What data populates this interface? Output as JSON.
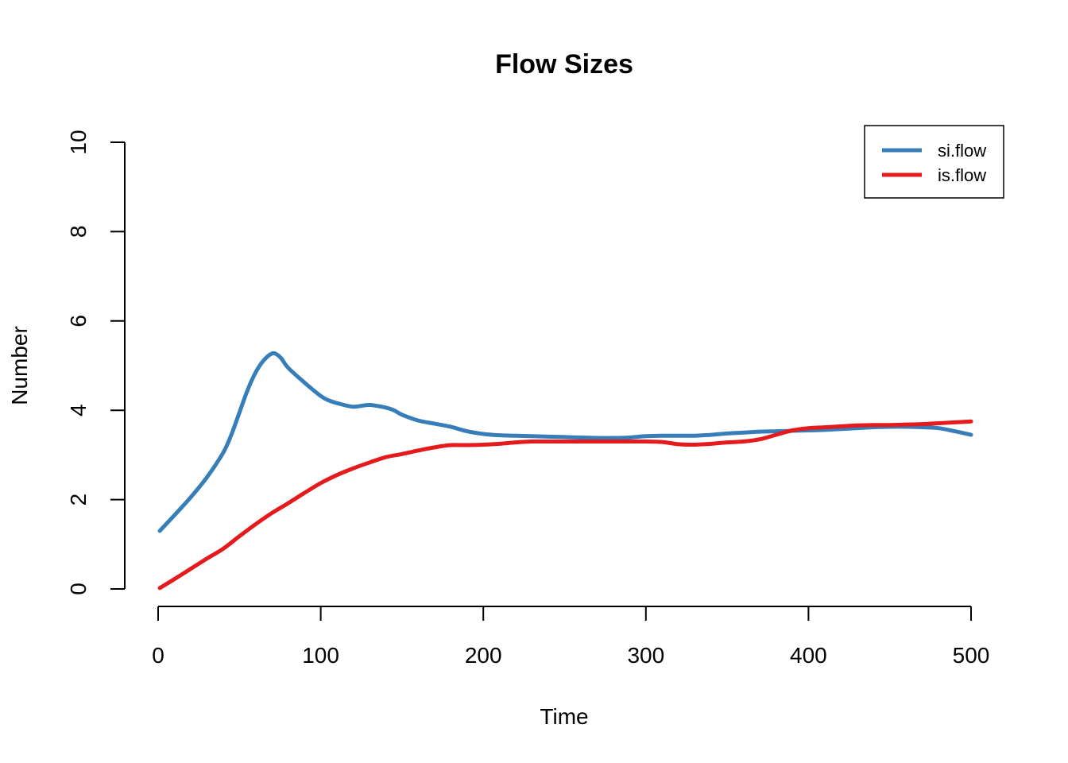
{
  "chart_data": {
    "type": "line",
    "title": "Flow Sizes",
    "xlabel": "Time",
    "ylabel": "Number",
    "xlim": [
      0,
      500
    ],
    "ylim": [
      0,
      10
    ],
    "xticks": [
      0,
      100,
      200,
      300,
      400,
      500
    ],
    "yticks": [
      0,
      2,
      4,
      6,
      8,
      10
    ],
    "grid": false,
    "legend": {
      "position": "top-right"
    },
    "series": [
      {
        "name": "si.flow",
        "color": "#377EB8",
        "x": [
          1,
          10,
          20,
          30,
          40,
          45,
          50,
          55,
          60,
          65,
          70,
          73,
          76,
          80,
          90,
          100,
          105,
          110,
          120,
          130,
          140,
          145,
          150,
          160,
          170,
          180,
          190,
          200,
          210,
          220,
          230,
          240,
          250,
          260,
          270,
          280,
          290,
          300,
          310,
          320,
          330,
          340,
          350,
          360,
          370,
          380,
          390,
          400,
          410,
          420,
          430,
          440,
          450,
          460,
          470,
          480,
          490,
          500
        ],
        "y": [
          1.3,
          1.65,
          2.05,
          2.5,
          3.05,
          3.45,
          3.95,
          4.45,
          4.85,
          5.12,
          5.27,
          5.25,
          5.15,
          4.95,
          4.62,
          4.32,
          4.22,
          4.16,
          4.08,
          4.12,
          4.06,
          4.0,
          3.9,
          3.77,
          3.7,
          3.63,
          3.53,
          3.47,
          3.44,
          3.43,
          3.42,
          3.41,
          3.4,
          3.39,
          3.38,
          3.38,
          3.39,
          3.42,
          3.43,
          3.43,
          3.43,
          3.45,
          3.48,
          3.5,
          3.52,
          3.53,
          3.54,
          3.55,
          3.56,
          3.58,
          3.6,
          3.62,
          3.63,
          3.63,
          3.62,
          3.6,
          3.53,
          3.45
        ]
      },
      {
        "name": "is.flow",
        "color": "#E41A1C",
        "x": [
          1,
          10,
          20,
          30,
          40,
          50,
          60,
          70,
          80,
          90,
          100,
          110,
          120,
          130,
          140,
          150,
          160,
          170,
          180,
          190,
          200,
          210,
          220,
          230,
          240,
          250,
          260,
          270,
          280,
          290,
          300,
          310,
          320,
          330,
          340,
          350,
          360,
          370,
          380,
          390,
          400,
          410,
          420,
          430,
          440,
          450,
          460,
          470,
          480,
          490,
          500
        ],
        "y": [
          0.02,
          0.22,
          0.45,
          0.68,
          0.9,
          1.18,
          1.45,
          1.7,
          1.92,
          2.15,
          2.37,
          2.55,
          2.7,
          2.83,
          2.95,
          3.02,
          3.1,
          3.17,
          3.22,
          3.22,
          3.23,
          3.25,
          3.28,
          3.3,
          3.3,
          3.3,
          3.3,
          3.3,
          3.3,
          3.3,
          3.3,
          3.29,
          3.24,
          3.23,
          3.25,
          3.28,
          3.3,
          3.35,
          3.45,
          3.55,
          3.6,
          3.62,
          3.64,
          3.66,
          3.67,
          3.67,
          3.68,
          3.69,
          3.71,
          3.73,
          3.75
        ]
      }
    ]
  }
}
